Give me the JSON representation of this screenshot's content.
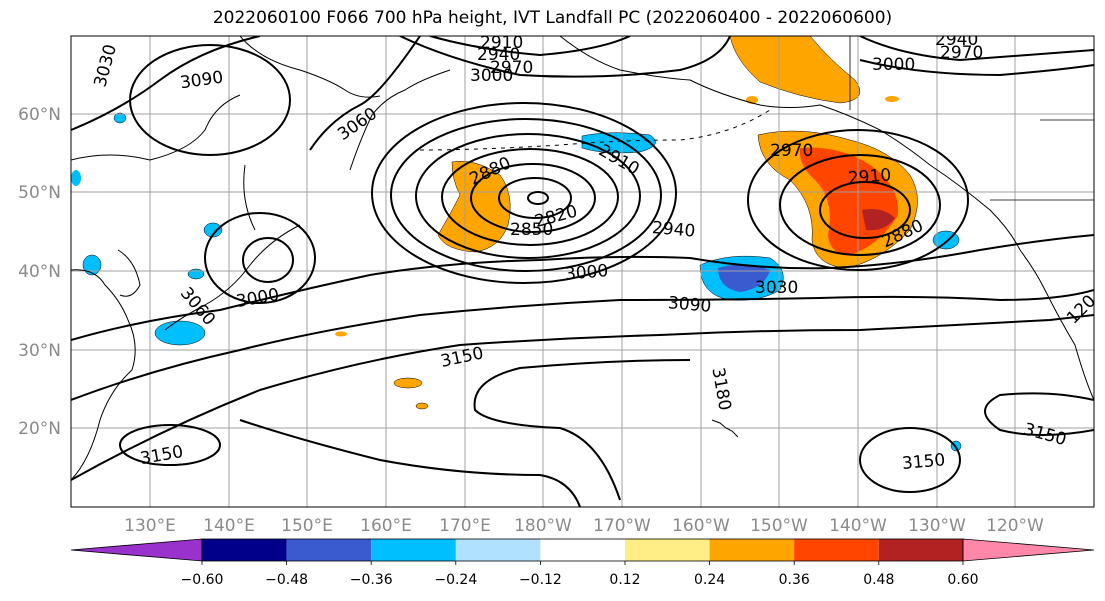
{
  "title": "2022060100 F066 700 hPa height, IVT Landfall PC (2022060400 - 2022060600)",
  "lat_labels": [
    {
      "text": "60°N",
      "lat": 60
    },
    {
      "text": "50°N",
      "lat": 50
    },
    {
      "text": "40°N",
      "lat": 40
    },
    {
      "text": "30°N",
      "lat": 30
    },
    {
      "text": "20°N",
      "lat": 20
    }
  ],
  "lon_labels": [
    {
      "text": "130°E",
      "lon": 130
    },
    {
      "text": "140°E",
      "lon": 140
    },
    {
      "text": "150°E",
      "lon": 150
    },
    {
      "text": "160°E",
      "lon": 160
    },
    {
      "text": "170°E",
      "lon": 170
    },
    {
      "text": "180°W",
      "lon": 180
    },
    {
      "text": "170°W",
      "lon": 190
    },
    {
      "text": "160°W",
      "lon": 200
    },
    {
      "text": "150°W",
      "lon": 210
    },
    {
      "text": "140°W",
      "lon": 220
    },
    {
      "text": "130°W",
      "lon": 230
    },
    {
      "text": "120°W",
      "lon": 240
    }
  ],
  "contour_labels": [
    "3030",
    "3090",
    "3060",
    "2910",
    "2940",
    "2970",
    "3000",
    "2880",
    "2910",
    "2820",
    "2850",
    "2940",
    "3000",
    "3030",
    "3090",
    "3150",
    "3180",
    "2970",
    "2910",
    "2880",
    "3000",
    "3060",
    "3150",
    "3150",
    "3150",
    "120",
    "2940",
    "2970",
    "3000"
  ],
  "colorbar": {
    "colors": [
      "#9932cc",
      "#00008b",
      "#3a5ad0",
      "#00bfff",
      "#b0e2ff",
      "#ffffff",
      "#ffed86",
      "#ffa500",
      "#ff4500",
      "#b22222",
      "#ff88aa"
    ],
    "ticks": [
      "−0.60",
      "−0.48",
      "−0.36",
      "−0.24",
      "−0.12",
      "0.12",
      "0.24",
      "0.36",
      "0.48",
      "0.60"
    ]
  }
}
